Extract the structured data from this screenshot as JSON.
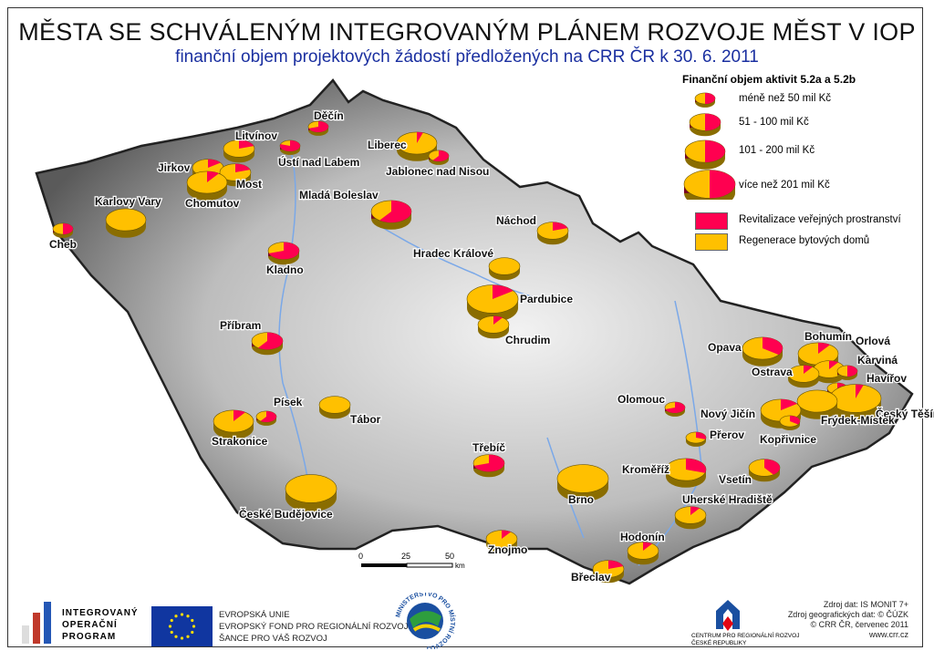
{
  "title": "MĚSTA SE SCHVÁLENÝM INTEGROVANÝM PLÁNEM ROZVOJE MĚST V IOP",
  "subtitle": "finanční objem projektových žádostí předložených na CRR ČR k 30. 6. 2011",
  "legend": {
    "title": "Finanční objem aktivit 5.2a a 5.2b",
    "sizes": [
      "méně než 50 mil Kč",
      "51 - 100 mil Kč",
      "101 - 200 mil Kč",
      "více než 201 mil Kč"
    ],
    "categories": [
      {
        "label": "Revitalizace veřejných prostranství",
        "color": "#ff0050"
      },
      {
        "label": "Regenerace bytových domů",
        "color": "#ffc000"
      }
    ]
  },
  "scale": {
    "ticks": [
      "0",
      "25",
      "50"
    ],
    "unit": "km"
  },
  "cities": [
    {
      "name": "Děčín",
      "size_class": 1,
      "revitalizace_share": 0.7
    },
    {
      "name": "Litvínov",
      "size_class": 2,
      "revitalizace_share": 0.2
    },
    {
      "name": "Ústí nad Labem",
      "size_class": 1,
      "revitalizace_share": 0.8
    },
    {
      "name": "Liberec",
      "size_class": 3,
      "revitalizace_share": 0.05
    },
    {
      "name": "Jablonec nad Nisou",
      "size_class": 1,
      "revitalizace_share": 0.6
    },
    {
      "name": "Jirkov",
      "size_class": 2,
      "revitalizace_share": 0.15
    },
    {
      "name": "Most",
      "size_class": 2,
      "revitalizace_share": 0.2
    },
    {
      "name": "Chomutov",
      "size_class": 3,
      "revitalizace_share": 0.1
    },
    {
      "name": "Karlovy Vary",
      "size_class": 3,
      "revitalizace_share": 0
    },
    {
      "name": "Cheb",
      "size_class": 1,
      "revitalizace_share": 0.5
    },
    {
      "name": "Mladá Boleslav",
      "size_class": 3,
      "revitalizace_share": 0.6
    },
    {
      "name": "Náchod",
      "size_class": 2,
      "revitalizace_share": 0.2
    },
    {
      "name": "Kladno",
      "size_class": 2,
      "revitalizace_share": 0.7
    },
    {
      "name": "Hradec Králové",
      "size_class": 2,
      "revitalizace_share": 0
    },
    {
      "name": "Pardubice",
      "size_class": 4,
      "revitalizace_share": 0.15
    },
    {
      "name": "Chrudim",
      "size_class": 2,
      "revitalizace_share": 0.1
    },
    {
      "name": "Příbram",
      "size_class": 2,
      "revitalizace_share": 0.6
    },
    {
      "name": "Opava",
      "size_class": 3,
      "revitalizace_share": 0.35
    },
    {
      "name": "Bohumín",
      "size_class": 3,
      "revitalizace_share": 0.1
    },
    {
      "name": "Orlová",
      "size_class": 2,
      "revitalizace_share": 0.1
    },
    {
      "name": "Ostrava",
      "size_class": 2,
      "revitalizace_share": 0.1
    },
    {
      "name": "Karviná",
      "size_class": 1,
      "revitalizace_share": 0.5
    },
    {
      "name": "Havířov",
      "size_class": 1,
      "revitalizace_share": 0.6
    },
    {
      "name": "Český Těšín",
      "size_class": 4,
      "revitalizace_share": 0.05
    },
    {
      "name": "Frýdek-Místek",
      "size_class": 3,
      "revitalizace_share": 0
    },
    {
      "name": "Nový Jičín",
      "size_class": 3,
      "revitalizace_share": 0.15
    },
    {
      "name": "Kopřivnice",
      "size_class": 1,
      "revitalizace_share": 0.35
    },
    {
      "name": "Písek",
      "size_class": 1,
      "revitalizace_share": 0.6
    },
    {
      "name": "Tábor",
      "size_class": 2,
      "revitalizace_share": 0
    },
    {
      "name": "Strakonice",
      "size_class": 3,
      "revitalizace_share": 0.1
    },
    {
      "name": "Olomouc",
      "size_class": 1,
      "revitalizace_share": 0.7
    },
    {
      "name": "Přerov",
      "size_class": 1,
      "revitalizace_share": 0.3
    },
    {
      "name": "Třebíč",
      "size_class": 2,
      "revitalizace_share": 0.7
    },
    {
      "name": "Brno",
      "size_class": 4,
      "revitalizace_share": 0
    },
    {
      "name": "Kroměříž",
      "size_class": 3,
      "revitalizace_share": 0.3
    },
    {
      "name": "Vsetín",
      "size_class": 2,
      "revitalizace_share": 0.4
    },
    {
      "name": "České Budějovice",
      "size_class": 4,
      "revitalizace_share": 0
    },
    {
      "name": "Uherské Hradiště",
      "size_class": 2,
      "revitalizace_share": 0.1
    },
    {
      "name": "Znojmo",
      "size_class": 2,
      "revitalizace_share": 0.1
    },
    {
      "name": "Hodonín",
      "size_class": 2,
      "revitalizace_share": 0.1
    },
    {
      "name": "Břeclav",
      "size_class": 2,
      "revitalizace_share": 0.2
    }
  ],
  "footer": {
    "iop": [
      "INTEGROVANÝ",
      "OPERAČNÍ",
      "PROGRAM"
    ],
    "eu": [
      "EVROPSKÁ UNIE",
      "EVROPSKÝ FOND PRO REGIONÁLNÍ ROZVOJ",
      "ŠANCE PRO VÁŠ ROZVOJ"
    ],
    "mmr": "MINISTERSTVO PRO MÍSTNÍ ROZVOJ",
    "crr": [
      "CENTRUM PRO REGIONÁLNÍ ROZVOJ",
      "ČESKÉ REPUBLIKY"
    ],
    "sources": [
      "Zdroj dat: IS MONIT 7+",
      "Zdroj geografických dat: © ČÚZK",
      "© CRR ČR, červenec 2011",
      "www.crr.cz"
    ]
  }
}
